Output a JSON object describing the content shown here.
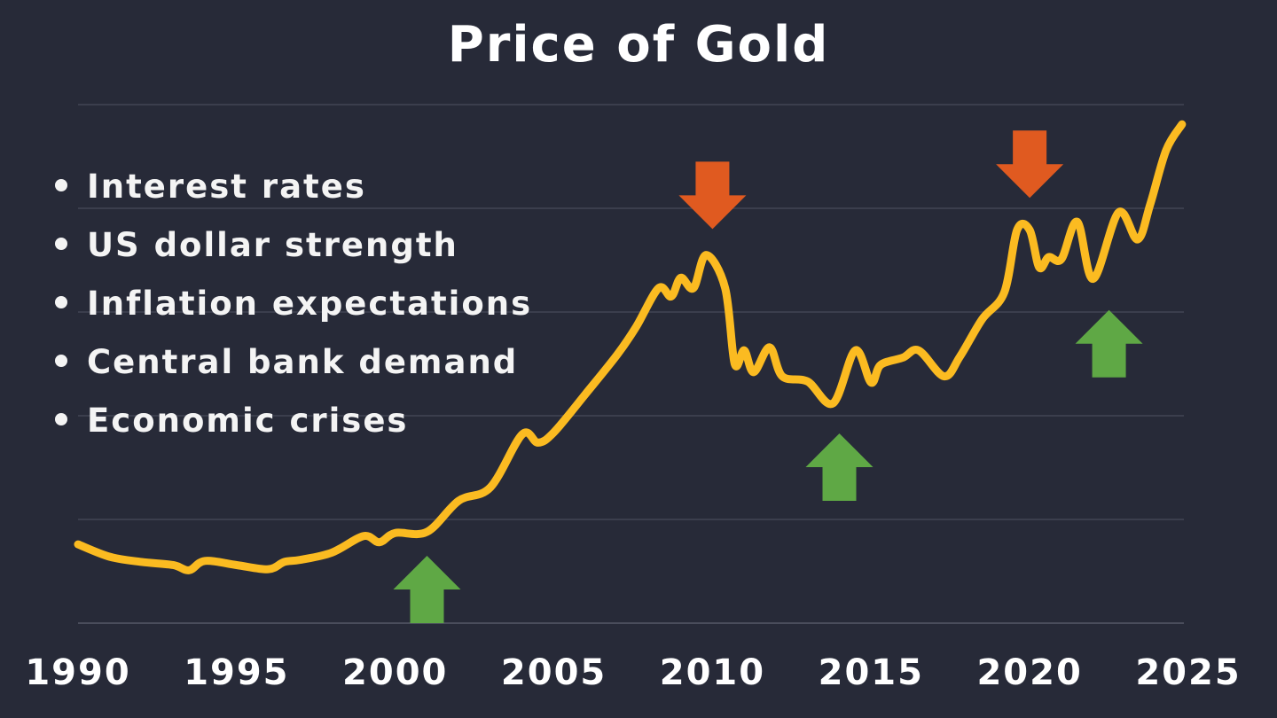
{
  "chart_data": {
    "type": "line",
    "title": "Price of Gold",
    "xlabel": "",
    "ylabel": "",
    "x_ticks": [
      "1990",
      "1995",
      "2000",
      "2005",
      "2010",
      "2015",
      "2020",
      "2025"
    ],
    "xlim": [
      1990,
      2025
    ],
    "ylim": [
      0,
      5
    ],
    "grid": "horizontal",
    "y_tick_labels_shown": false,
    "series": [
      {
        "color": "#fbbb21",
        "x": [
          1990,
          1991,
          1992,
          1993,
          1993.5,
          1994,
          1995,
          1996,
          1996.5,
          1997,
          1998,
          1999,
          1999.5,
          2000,
          2001,
          2002,
          2003,
          2004,
          2004.5,
          2005,
          2006,
          2007,
          2007.6,
          2008.3,
          2008.7,
          2009,
          2009.4,
          2009.8,
          2010.4,
          2010.7,
          2011,
          2011.3,
          2011.8,
          2012.2,
          2013,
          2013.8,
          2014.5,
          2015,
          2015.3,
          2016,
          2016.5,
          2017.3,
          2017.8,
          2018.5,
          2019.2,
          2019.6,
          2020,
          2020.3,
          2020.6,
          2021,
          2021.5,
          2022,
          2022.8,
          2023.4,
          2023.8,
          2024.3,
          2024.8
        ],
        "y": [
          0.76,
          0.64,
          0.59,
          0.56,
          0.51,
          0.6,
          0.56,
          0.52,
          0.59,
          0.61,
          0.68,
          0.84,
          0.78,
          0.87,
          0.88,
          1.18,
          1.31,
          1.82,
          1.74,
          1.84,
          2.21,
          2.59,
          2.86,
          3.23,
          3.15,
          3.33,
          3.23,
          3.55,
          3.23,
          2.5,
          2.63,
          2.42,
          2.66,
          2.38,
          2.33,
          2.12,
          2.63,
          2.32,
          2.49,
          2.56,
          2.63,
          2.38,
          2.57,
          2.93,
          3.19,
          3.79,
          3.79,
          3.43,
          3.53,
          3.51,
          3.87,
          3.32,
          3.96,
          3.7,
          4.04,
          4.56,
          4.81
        ]
      }
    ],
    "annotations": [
      {
        "type": "arrow-up",
        "color": "#5fa845",
        "x": 2001,
        "y": 0.0
      },
      {
        "type": "arrow-down",
        "color": "#e05a20",
        "x": 2010,
        "y": 3.8
      },
      {
        "type": "arrow-up",
        "color": "#5fa845",
        "x": 2014,
        "y": 1.18
      },
      {
        "type": "arrow-down",
        "color": "#e05a20",
        "x": 2020,
        "y": 4.1
      },
      {
        "type": "arrow-up",
        "color": "#5fa845",
        "x": 2022.5,
        "y": 2.37
      }
    ]
  },
  "factors": [
    "Interest rates",
    "US dollar strength",
    "Inflation expectations",
    "Central bank demand",
    "Economic crises"
  ],
  "colors": {
    "background": "#272a38",
    "grid": "#3b3e4d",
    "text": "#ffffff"
  }
}
